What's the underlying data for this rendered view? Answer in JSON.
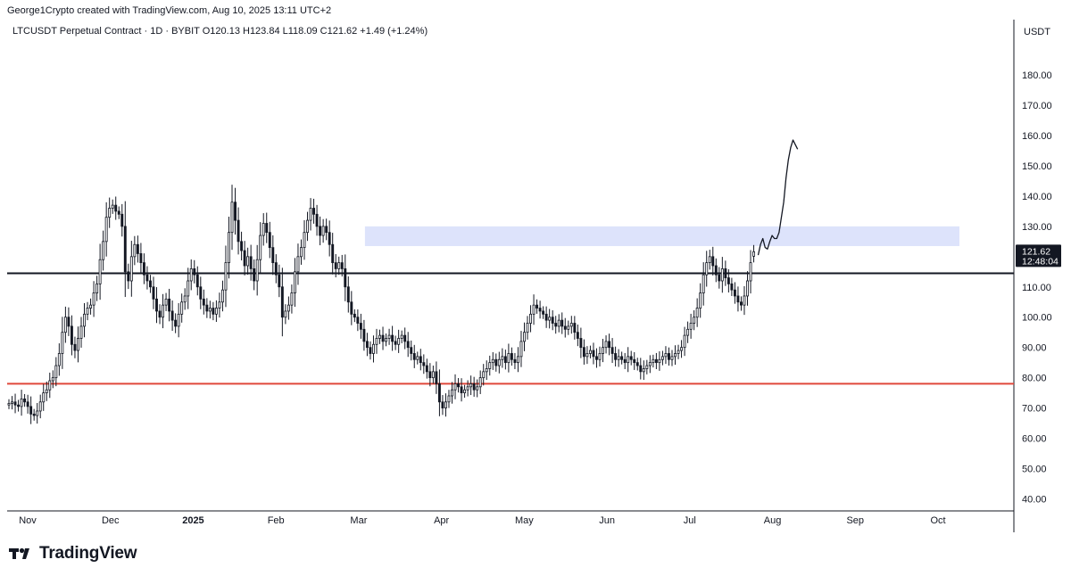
{
  "credit": "George1Crypto created with TradingView.com, Aug 10, 2025 13:11 UTC+2",
  "header": "LTCUSDT Perpetual Contract · 1D · BYBIT  O120.13  H123.84  L118.09  C121.62  +1.49 (+1.24%)",
  "brand": {
    "name": "TradingView",
    "logo_icon": "tradingview-logo-icon"
  },
  "colors": {
    "up": "#ffffff",
    "down": "#131722",
    "wick": "#131722",
    "support_line": "#e0473b",
    "level_line": "#131722",
    "zone_fill": "#dde3fb",
    "price_tag_bg": "#131722",
    "price_tag_text": "#ffffff"
  },
  "chart_data": {
    "type": "candlestick",
    "symbol": "LTCUSDT",
    "interval": "1D",
    "exchange": "BYBIT",
    "currency": "USDT",
    "ohlc": {
      "open": 120.13,
      "high": 123.84,
      "low": 118.09,
      "close": 121.62,
      "change": 1.49,
      "change_pct": 1.24
    },
    "x_ticks": [
      "Nov",
      "Dec",
      "2025",
      "Feb",
      "Mar",
      "Apr",
      "May",
      "Jun",
      "Jul",
      "Aug",
      "Sep",
      "Oct"
    ],
    "y_ticks": [
      "40.00",
      "50.00",
      "60.00",
      "70.00",
      "80.00",
      "90.00",
      "100.00",
      "110.00",
      "120.00",
      "130.00",
      "140.00",
      "150.00",
      "160.00",
      "170.00",
      "180.00"
    ],
    "ylim": [
      36,
      193
    ],
    "price_label": "121.62",
    "countdown_label": "12:48:04",
    "close_series": [
      71.5,
      72,
      71,
      70.5,
      73,
      72,
      70.5,
      68,
      67.5,
      69,
      72,
      75,
      76,
      79,
      80,
      84,
      88,
      95,
      100,
      97,
      91,
      89,
      93,
      97,
      101,
      103,
      104,
      108,
      111,
      119,
      125,
      133,
      136,
      137,
      135,
      134,
      130,
      115,
      112,
      120,
      124,
      121,
      118,
      114,
      112,
      110,
      106,
      102,
      100,
      104,
      106,
      102,
      99,
      97,
      101,
      105,
      107,
      112,
      116,
      114,
      110,
      106,
      104,
      102,
      103,
      101,
      103,
      105,
      109,
      118,
      128,
      138,
      132,
      125,
      122,
      117,
      120,
      116,
      112,
      119,
      127,
      131,
      128,
      123,
      118,
      114,
      110,
      100,
      102,
      104,
      108,
      115,
      120,
      123,
      128,
      132,
      136,
      134,
      130,
      127,
      130,
      128,
      124,
      118,
      116,
      118,
      116,
      110,
      105,
      101,
      100,
      98,
      96,
      92,
      90,
      88,
      91,
      93,
      94,
      92,
      93,
      94,
      92,
      91,
      93,
      94,
      92,
      90,
      88,
      86,
      87,
      85,
      84,
      82,
      80,
      82,
      78,
      72,
      70,
      72,
      74,
      76,
      78,
      77,
      75,
      76,
      77,
      78,
      76,
      77,
      80,
      82,
      83,
      85,
      86,
      84,
      86,
      87,
      85,
      88,
      86,
      85,
      87,
      92,
      95,
      98,
      101,
      104,
      103,
      102,
      101,
      99,
      100,
      98,
      97,
      99,
      97,
      96,
      97,
      98,
      95,
      93,
      90,
      87,
      88,
      89,
      87,
      86,
      88,
      90,
      92,
      90,
      88,
      86,
      87,
      86,
      85,
      87,
      86,
      85,
      84,
      82,
      83,
      84,
      85,
      86,
      85,
      86,
      87,
      88,
      86,
      87,
      88,
      89,
      90,
      94,
      96,
      98,
      100,
      103,
      108,
      114,
      118,
      120,
      117,
      114,
      112,
      116,
      113,
      111,
      109,
      107,
      105,
      104,
      107,
      112,
      118,
      121.62
    ],
    "levels": [
      {
        "label": "level-line",
        "value": 114.5
      },
      {
        "label": "support-line",
        "value": 78
      }
    ],
    "resistance_zone": {
      "low": 123.5,
      "high": 130,
      "x_start": "Mar",
      "x_end": "Oct"
    },
    "projection_path": [
      [
        0,
        120.5
      ],
      [
        1,
        124
      ],
      [
        2,
        126
      ],
      [
        3,
        123
      ],
      [
        4,
        122.5
      ],
      [
        5,
        125
      ],
      [
        6,
        127
      ],
      [
        7,
        126
      ],
      [
        8,
        126
      ],
      [
        9,
        128
      ],
      [
        10,
        133
      ],
      [
        11,
        138
      ],
      [
        12,
        146
      ],
      [
        13,
        152
      ],
      [
        14,
        156
      ],
      [
        15,
        158.5
      ],
      [
        16,
        157
      ],
      [
        17,
        155.5
      ]
    ]
  }
}
